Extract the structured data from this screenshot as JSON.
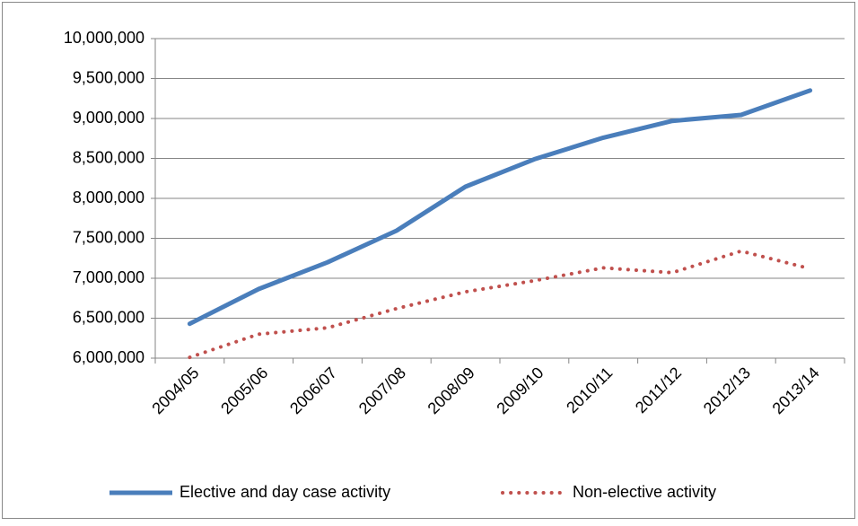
{
  "chart_data": {
    "type": "line",
    "categories": [
      "2004/05",
      "2005/06",
      "2006/07",
      "2007/08",
      "2008/09",
      "2009/10",
      "2010/11",
      "2011/12",
      "2012/13",
      "2013/14"
    ],
    "series": [
      {
        "name": "Elective and day case activity",
        "color": "#4a7ebb",
        "style": "solid",
        "values": [
          6430000,
          6865000,
          7200000,
          7595000,
          8146000,
          8490000,
          8760000,
          8970000,
          9045000,
          9350000
        ]
      },
      {
        "name": "Non-elective activity",
        "color": "#c0504d",
        "style": "dotted",
        "values": [
          6010000,
          6300000,
          6380000,
          6620000,
          6830000,
          6970000,
          7130000,
          7070000,
          7340000,
          7120000
        ]
      }
    ],
    "ylim": [
      6000000,
      10000000
    ],
    "yticks": [
      {
        "value": 6000000,
        "label": "6,000,000"
      },
      {
        "value": 6500000,
        "label": "6,500,000"
      },
      {
        "value": 7000000,
        "label": "7,000,000"
      },
      {
        "value": 7500000,
        "label": "7,500,000"
      },
      {
        "value": 8000000,
        "label": "8,000,000"
      },
      {
        "value": 8500000,
        "label": "8,500,000"
      },
      {
        "value": 9000000,
        "label": "9,000,000"
      },
      {
        "value": 9500000,
        "label": "9,500,000"
      },
      {
        "value": 10000000,
        "label": "10,000,000"
      }
    ],
    "grid": true,
    "legend": "bottom"
  }
}
